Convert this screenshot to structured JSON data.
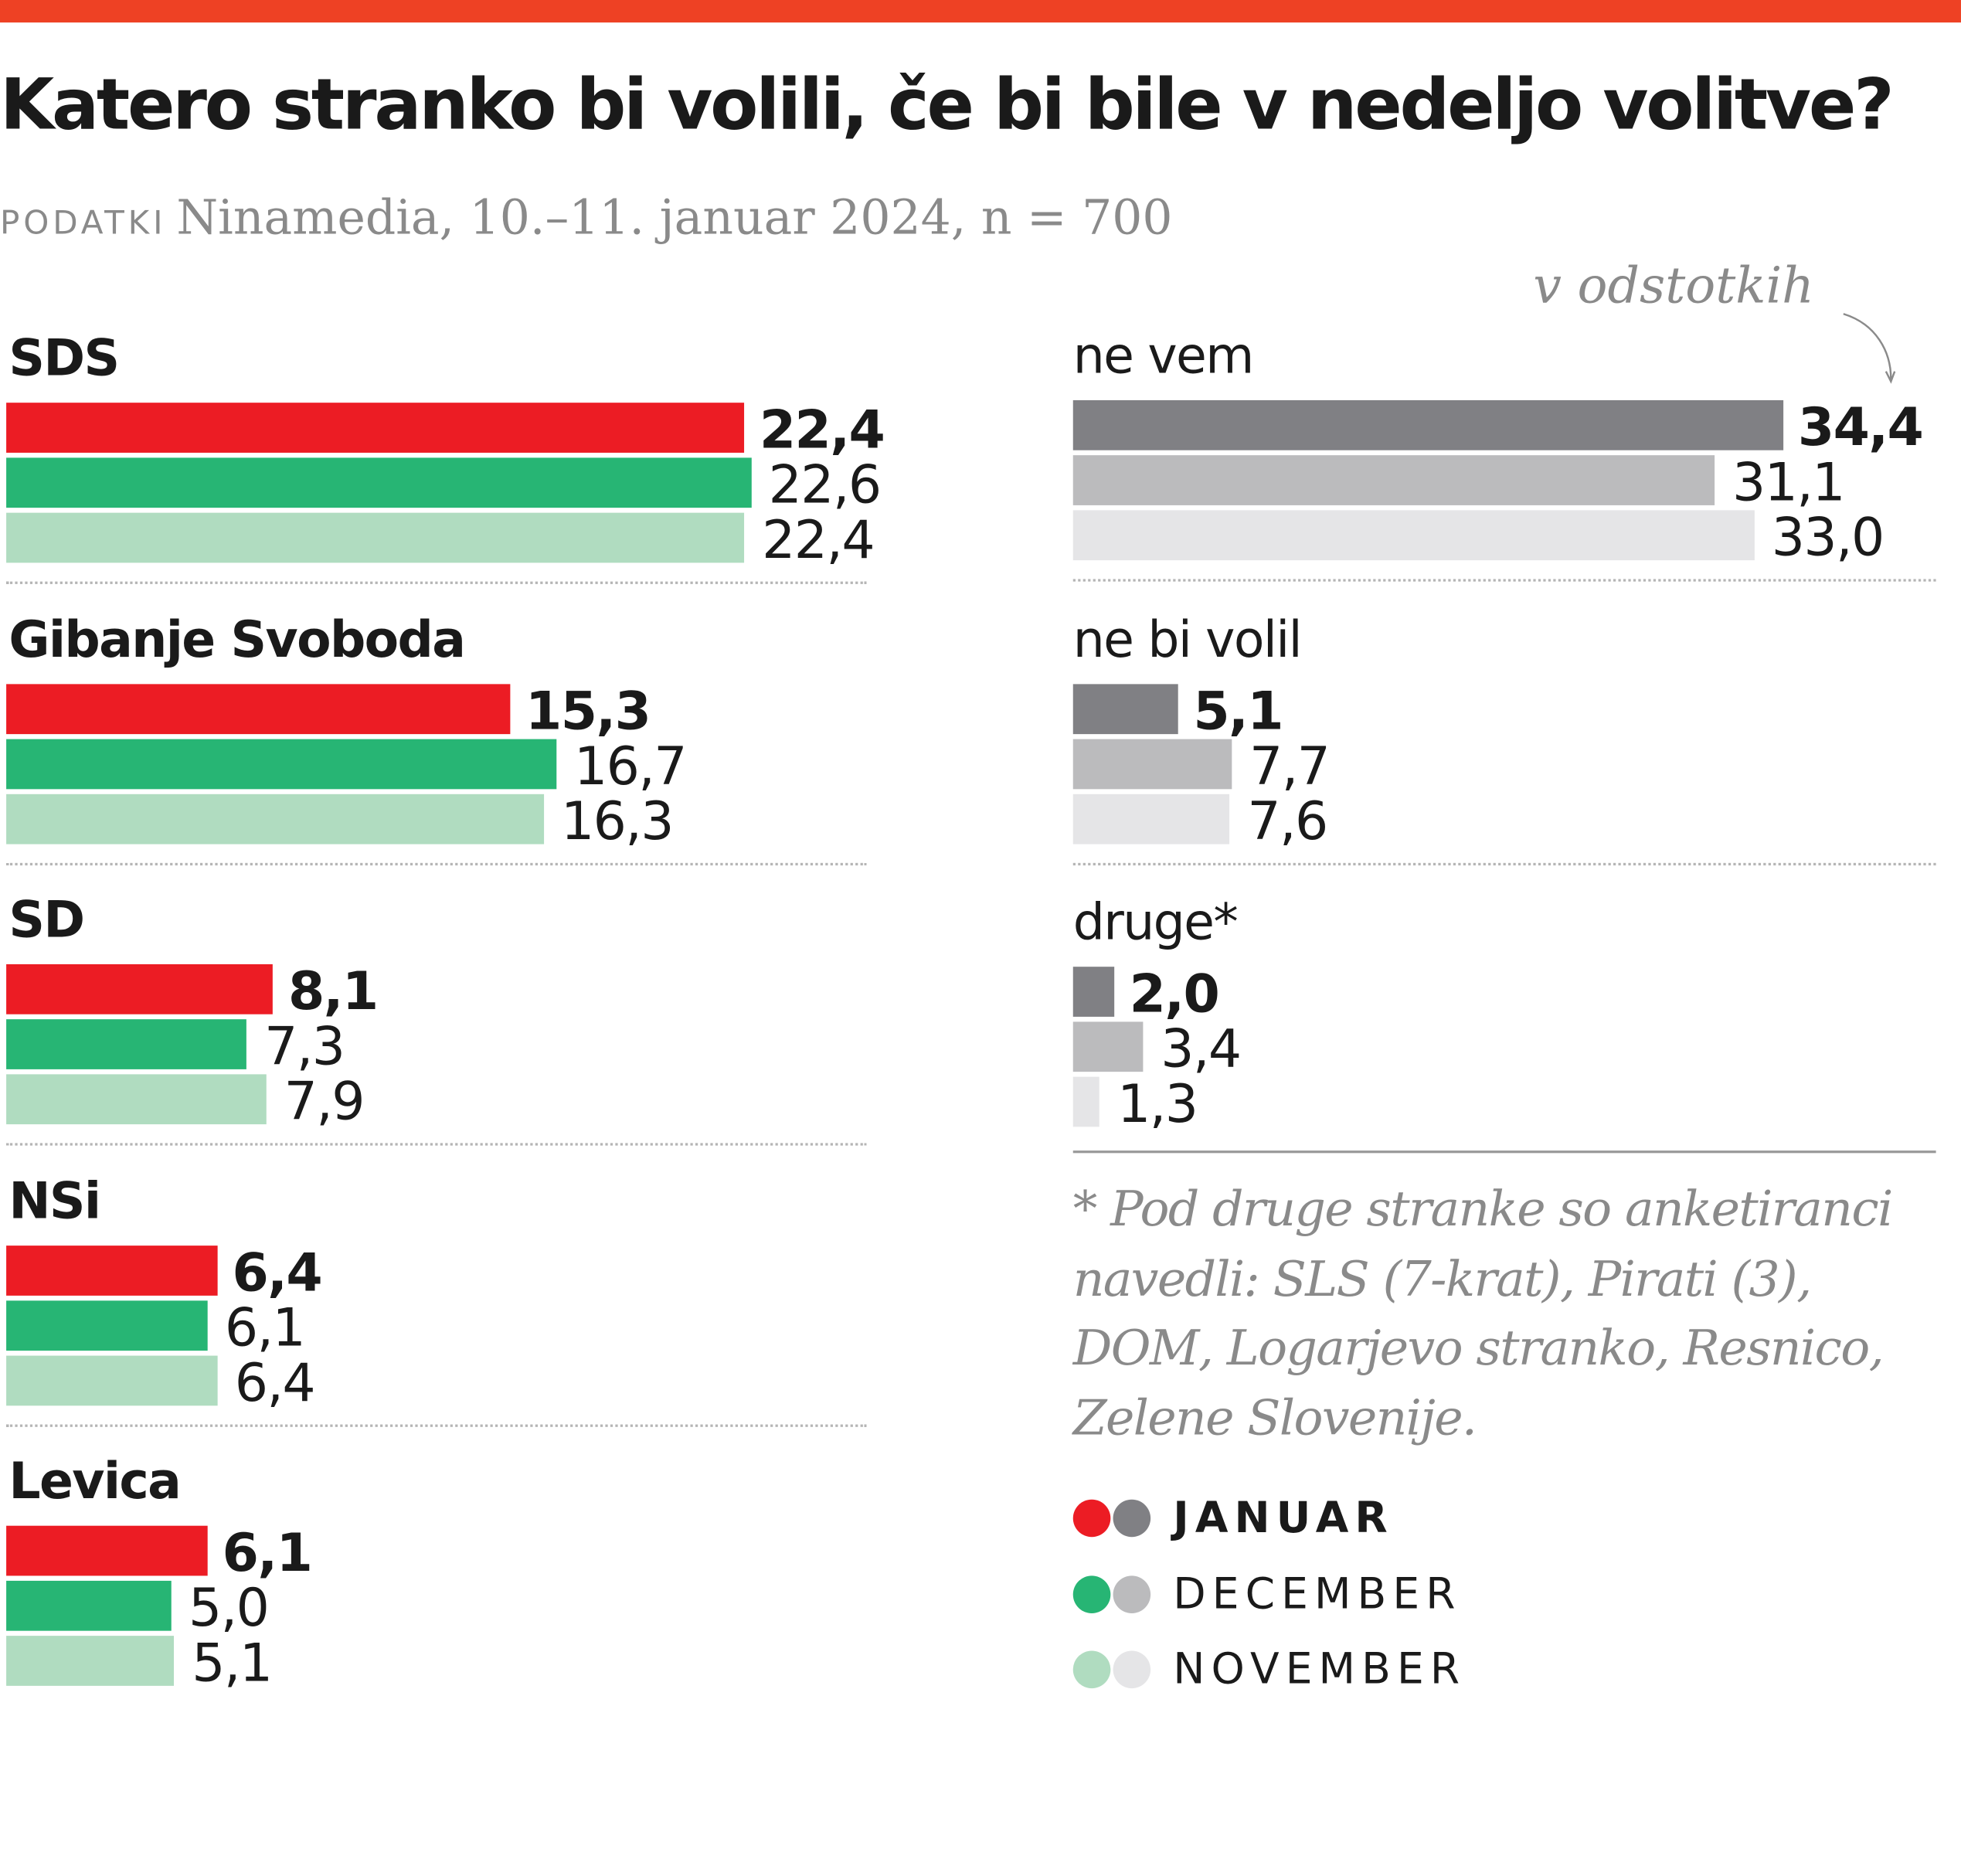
{
  "header": {
    "title": "Katero stranko bi volili, če bi bile v nedeljo volitve?",
    "source_label": "PODATKI",
    "source": "Ninamedia, 10.–11. januar 2024, n = 700",
    "unit_note": "v odstotkih"
  },
  "colors": {
    "accent_bar": "#ee4124",
    "party": [
      "#ec1c24",
      "#27b574",
      "#b0dcc0"
    ],
    "other": [
      "#808084",
      "#bbbbbd",
      "#e5e5e7"
    ]
  },
  "chart_data": {
    "type": "bar",
    "orientation": "horizontal",
    "series": [
      {
        "name": "JANUAR"
      },
      {
        "name": "DECEMBER"
      },
      {
        "name": "NOVEMBER"
      }
    ],
    "groups": [
      {
        "label": "SDS",
        "kind": "party",
        "values": [
          22.4,
          22.6,
          22.4
        ],
        "labels": [
          "22,4",
          "22,6",
          "22,4"
        ]
      },
      {
        "label": "Gibanje Svoboda",
        "kind": "party",
        "values": [
          15.3,
          16.7,
          16.3
        ],
        "labels": [
          "15,3",
          "16,7",
          "16,3"
        ]
      },
      {
        "label": "SD",
        "kind": "party",
        "values": [
          8.1,
          7.3,
          7.9
        ],
        "labels": [
          "8,1",
          "7,3",
          "7,9"
        ]
      },
      {
        "label": "NSi",
        "kind": "party",
        "values": [
          6.4,
          6.1,
          6.4
        ],
        "labels": [
          "6,4",
          "6,1",
          "6,4"
        ]
      },
      {
        "label": "Levica",
        "kind": "party",
        "values": [
          6.1,
          5.0,
          5.1
        ],
        "labels": [
          "6,1",
          "5,0",
          "5,1"
        ]
      },
      {
        "label": "ne vem",
        "kind": "other",
        "values": [
          34.4,
          31.1,
          33.0
        ],
        "labels": [
          "34,4",
          "31,1",
          "33,0"
        ]
      },
      {
        "label": "ne bi volil",
        "kind": "other",
        "values": [
          5.1,
          7.7,
          7.6
        ],
        "labels": [
          "5,1",
          "7,7",
          "7,6"
        ]
      },
      {
        "label": "druge*",
        "kind": "other",
        "values": [
          2.0,
          3.4,
          1.3
        ],
        "labels": [
          "2,0",
          "3,4",
          "1,3"
        ]
      }
    ],
    "legend": [
      "JANUAR",
      "DECEMBER",
      "NOVEMBER"
    ],
    "legend_placement": "bottom-right"
  },
  "footnote": "* Pod druge stranke so anketiranci navedli: SLS (7-krat), Pirati (3), DOM, Logarjevo stranko, Resnico, Zelene Slovenije."
}
